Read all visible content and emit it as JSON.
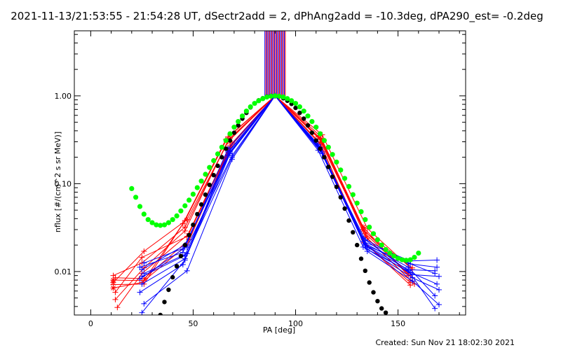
{
  "chart_data": {
    "type": "line",
    "title": "2021-11-13/21:53:55 - 21:54:28 UT, dSectr2add = 2, dPhAng2add = -10.3deg, dPA290_est= -0.2deg",
    "xlabel": "PA [deg]",
    "ylabel": "nflux [#/(cm^2 s sr MeV)]",
    "xlim": [
      -8,
      183
    ],
    "ylim": [
      0.0032,
      5.5
    ],
    "yscale": "log",
    "grid": false,
    "x_ticks": [
      {
        "value": 0,
        "label": "0"
      },
      {
        "value": 50,
        "label": "50"
      },
      {
        "value": 100,
        "label": "100"
      },
      {
        "value": 150,
        "label": "150"
      }
    ],
    "y_ticks": [
      {
        "value": 0.01,
        "label": "0.01"
      },
      {
        "value": 0.1,
        "label": "0.10"
      },
      {
        "value": 1,
        "label": "1.00"
      }
    ],
    "footer": "Created: Sun Nov 21 18:02:30 2021",
    "colors": {
      "red": "#ff0000",
      "blue": "#0000ff",
      "black": "#000000",
      "green": "#00ff00"
    },
    "series": [
      {
        "color": "red",
        "points": [
          [
            11,
            0.0075
          ],
          [
            26,
            0.017
          ],
          [
            47,
            0.039
          ],
          [
            68,
            0.33
          ],
          [
            90,
            1.0
          ],
          [
            112,
            0.35
          ],
          [
            133,
            0.032
          ],
          [
            155,
            0.009
          ]
        ]
      },
      {
        "color": "red",
        "points": [
          [
            11,
            0.009
          ],
          [
            25,
            0.0125
          ],
          [
            46,
            0.032
          ],
          [
            67,
            0.3
          ],
          [
            90,
            1.0
          ],
          [
            112,
            0.32
          ],
          [
            134,
            0.028
          ],
          [
            157,
            0.011
          ]
        ]
      },
      {
        "color": "red",
        "points": [
          [
            12,
            0.0085
          ],
          [
            26,
            0.0083
          ],
          [
            48,
            0.023
          ],
          [
            69,
            0.28
          ],
          [
            90,
            1.0
          ],
          [
            113,
            0.3
          ],
          [
            134,
            0.025
          ],
          [
            156,
            0.008
          ]
        ]
      },
      {
        "color": "red",
        "points": [
          [
            11,
            0.0065
          ],
          [
            25,
            0.0075
          ],
          [
            47,
            0.02
          ],
          [
            68,
            0.26
          ],
          [
            90,
            1.0
          ],
          [
            112,
            0.29
          ],
          [
            133,
            0.022
          ],
          [
            156,
            0.0075
          ]
        ]
      },
      {
        "color": "red",
        "points": [
          [
            12,
            0.0048
          ],
          [
            26,
            0.011
          ],
          [
            46,
            0.029
          ],
          [
            67,
            0.31
          ],
          [
            90,
            1.0
          ],
          [
            112,
            0.33
          ],
          [
            134,
            0.027
          ],
          [
            157,
            0.0085
          ]
        ]
      },
      {
        "color": "red",
        "points": [
          [
            13,
            0.0039
          ],
          [
            25,
            0.0095
          ],
          [
            48,
            0.027
          ],
          [
            69,
            0.29
          ],
          [
            90,
            1.0
          ],
          [
            113,
            0.31
          ],
          [
            135,
            0.024
          ],
          [
            158,
            0.0072
          ]
        ]
      },
      {
        "color": "red",
        "points": [
          [
            11,
            0.008
          ],
          [
            26,
            0.0079
          ],
          [
            45,
            0.035
          ],
          [
            66,
            0.32
          ],
          [
            90,
            1.0
          ],
          [
            111,
            0.34
          ],
          [
            133,
            0.03
          ],
          [
            155,
            0.0095
          ]
        ]
      },
      {
        "color": "red",
        "points": [
          [
            12,
            0.0058
          ],
          [
            25,
            0.0145
          ],
          [
            47,
            0.025
          ],
          [
            68,
            0.27
          ],
          [
            90,
            1.0
          ],
          [
            112,
            0.28
          ],
          [
            134,
            0.021
          ],
          [
            156,
            0.007
          ]
        ]
      },
      {
        "color": "red",
        "points": [
          [
            11,
            0.0071
          ],
          [
            26,
            0.0072
          ],
          [
            46,
            0.038
          ],
          [
            67,
            0.34
          ],
          [
            90,
            1.0
          ],
          [
            113,
            0.36
          ],
          [
            135,
            0.031
          ],
          [
            157,
            0.0105
          ]
        ]
      },
      {
        "color": "blue",
        "points": [
          [
            25,
            0.0105
          ],
          [
            46,
            0.02
          ],
          [
            68,
            0.22
          ],
          [
            90,
            1.0
          ],
          [
            112,
            0.25
          ],
          [
            134,
            0.02
          ],
          [
            155,
            0.0125
          ],
          [
            168,
            0.0095
          ]
        ]
      },
      {
        "color": "blue",
        "points": [
          [
            24,
            0.0082
          ],
          [
            45,
            0.018
          ],
          [
            67,
            0.21
          ],
          [
            90,
            1.0
          ],
          [
            111,
            0.24
          ],
          [
            133,
            0.019
          ],
          [
            156,
            0.0098
          ],
          [
            169,
            0.0072
          ]
        ]
      },
      {
        "color": "blue",
        "points": [
          [
            26,
            0.0095
          ],
          [
            47,
            0.016
          ],
          [
            69,
            0.2
          ],
          [
            90,
            1.0
          ],
          [
            113,
            0.23
          ],
          [
            135,
            0.018
          ],
          [
            157,
            0.0085
          ],
          [
            170,
            0.0062
          ]
        ]
      },
      {
        "color": "blue",
        "points": [
          [
            25,
            0.0072
          ],
          [
            46,
            0.014
          ],
          [
            68,
            0.24
          ],
          [
            90,
            1.0
          ],
          [
            112,
            0.26
          ],
          [
            134,
            0.021
          ],
          [
            155,
            0.0112
          ],
          [
            168,
            0.0053
          ]
        ]
      },
      {
        "color": "blue",
        "points": [
          [
            24,
            0.0058
          ],
          [
            45,
            0.012
          ],
          [
            67,
            0.23
          ],
          [
            90,
            1.0
          ],
          [
            111,
            0.27
          ],
          [
            133,
            0.022
          ],
          [
            156,
            0.0132
          ],
          [
            169,
            0.0135
          ]
        ]
      },
      {
        "color": "blue",
        "points": [
          [
            26,
            0.0043
          ],
          [
            47,
            0.0102
          ],
          [
            69,
            0.19
          ],
          [
            90,
            1.0
          ],
          [
            113,
            0.22
          ],
          [
            135,
            0.017
          ],
          [
            157,
            0.0078
          ],
          [
            170,
            0.0042
          ]
        ]
      },
      {
        "color": "blue",
        "points": [
          [
            25,
            0.0034
          ],
          [
            46,
            0.0135
          ],
          [
            68,
            0.22
          ],
          [
            90,
            1.0
          ],
          [
            112,
            0.24
          ],
          [
            134,
            0.023
          ],
          [
            155,
            0.0102
          ],
          [
            168,
            0.0038
          ]
        ]
      },
      {
        "color": "blue",
        "points": [
          [
            24,
            0.0112
          ],
          [
            45,
            0.0165
          ],
          [
            67,
            0.25
          ],
          [
            90,
            1.0
          ],
          [
            111,
            0.28
          ],
          [
            133,
            0.024
          ],
          [
            156,
            0.0122
          ],
          [
            169,
            0.0112
          ]
        ]
      },
      {
        "color": "blue",
        "points": [
          [
            26,
            0.0125
          ],
          [
            47,
            0.019
          ],
          [
            69,
            0.21
          ],
          [
            90,
            1.0
          ],
          [
            113,
            0.23
          ],
          [
            135,
            0.019
          ],
          [
            157,
            0.0092
          ],
          [
            170,
            0.0088
          ]
        ]
      },
      {
        "color": "blue",
        "points": [
          [
            25,
            0.0088
          ],
          [
            46,
            0.0152
          ],
          [
            68,
            0.23
          ],
          [
            90,
            1.0
          ],
          [
            112,
            0.25
          ],
          [
            134,
            0.02
          ],
          [
            155,
            0.0105
          ],
          [
            168,
            0.0102
          ]
        ]
      }
    ],
    "vertical_spike": {
      "x_range": [
        85,
        95
      ],
      "count": 22,
      "y_from": 1.0
    },
    "curves": [
      {
        "name": "black",
        "color": "black",
        "points": [
          [
            34,
            0.0032
          ],
          [
            36,
            0.0045
          ],
          [
            38,
            0.0062
          ],
          [
            40,
            0.0086
          ],
          [
            42,
            0.0115
          ],
          [
            44,
            0.015
          ],
          [
            46,
            0.02
          ],
          [
            48,
            0.026
          ],
          [
            50,
            0.034
          ],
          [
            52,
            0.045
          ],
          [
            54,
            0.058
          ],
          [
            56,
            0.075
          ],
          [
            58,
            0.097
          ],
          [
            60,
            0.125
          ],
          [
            62,
            0.16
          ],
          [
            64,
            0.2
          ],
          [
            66,
            0.25
          ],
          [
            68,
            0.31
          ],
          [
            70,
            0.38
          ],
          [
            72,
            0.46
          ],
          [
            74,
            0.55
          ],
          [
            76,
            0.64
          ],
          [
            78,
            0.74
          ],
          [
            80,
            0.82
          ],
          [
            82,
            0.89
          ],
          [
            84,
            0.94
          ],
          [
            86,
            0.98
          ],
          [
            88,
            1.0
          ],
          [
            90,
            1.0
          ],
          [
            92,
            0.98
          ],
          [
            94,
            0.94
          ],
          [
            96,
            0.88
          ],
          [
            98,
            0.81
          ],
          [
            100,
            0.73
          ],
          [
            102,
            0.64
          ],
          [
            104,
            0.55
          ],
          [
            106,
            0.46
          ],
          [
            108,
            0.38
          ],
          [
            110,
            0.31
          ],
          [
            112,
            0.25
          ],
          [
            114,
            0.2
          ],
          [
            116,
            0.155
          ],
          [
            118,
            0.12
          ],
          [
            120,
            0.092
          ],
          [
            122,
            0.07
          ],
          [
            124,
            0.052
          ],
          [
            126,
            0.038
          ],
          [
            128,
            0.028
          ],
          [
            130,
            0.02
          ],
          [
            132,
            0.014
          ],
          [
            134,
            0.0102
          ],
          [
            136,
            0.0075
          ],
          [
            138,
            0.0058
          ],
          [
            140,
            0.0046
          ],
          [
            142,
            0.0038
          ],
          [
            144,
            0.0034
          ]
        ]
      },
      {
        "name": "green",
        "color": "green",
        "points": [
          [
            20,
            0.088
          ],
          [
            22,
            0.07
          ],
          [
            24,
            0.055
          ],
          [
            26,
            0.045
          ],
          [
            28,
            0.039
          ],
          [
            30,
            0.036
          ],
          [
            32,
            0.034
          ],
          [
            34,
            0.0335
          ],
          [
            36,
            0.034
          ],
          [
            38,
            0.036
          ],
          [
            40,
            0.039
          ],
          [
            42,
            0.043
          ],
          [
            44,
            0.049
          ],
          [
            46,
            0.056
          ],
          [
            48,
            0.065
          ],
          [
            50,
            0.076
          ],
          [
            52,
            0.09
          ],
          [
            54,
            0.107
          ],
          [
            56,
            0.128
          ],
          [
            58,
            0.153
          ],
          [
            60,
            0.183
          ],
          [
            62,
            0.218
          ],
          [
            64,
            0.26
          ],
          [
            66,
            0.31
          ],
          [
            68,
            0.37
          ],
          [
            70,
            0.44
          ],
          [
            72,
            0.51
          ],
          [
            74,
            0.59
          ],
          [
            76,
            0.67
          ],
          [
            78,
            0.75
          ],
          [
            80,
            0.82
          ],
          [
            82,
            0.88
          ],
          [
            84,
            0.93
          ],
          [
            86,
            0.97
          ],
          [
            88,
            0.99
          ],
          [
            90,
            1.0
          ],
          [
            92,
            0.99
          ],
          [
            94,
            0.97
          ],
          [
            96,
            0.93
          ],
          [
            98,
            0.88
          ],
          [
            100,
            0.82
          ],
          [
            102,
            0.75
          ],
          [
            104,
            0.67
          ],
          [
            106,
            0.59
          ],
          [
            108,
            0.51
          ],
          [
            110,
            0.44
          ],
          [
            112,
            0.37
          ],
          [
            114,
            0.31
          ],
          [
            116,
            0.26
          ],
          [
            118,
            0.215
          ],
          [
            120,
            0.176
          ],
          [
            122,
            0.143
          ],
          [
            124,
            0.115
          ],
          [
            126,
            0.093
          ],
          [
            128,
            0.075
          ],
          [
            130,
            0.06
          ],
          [
            132,
            0.048
          ],
          [
            134,
            0.039
          ],
          [
            136,
            0.032
          ],
          [
            138,
            0.027
          ],
          [
            140,
            0.023
          ],
          [
            142,
            0.02
          ],
          [
            144,
            0.0178
          ],
          [
            146,
            0.0162
          ],
          [
            148,
            0.015
          ],
          [
            150,
            0.0141
          ],
          [
            152,
            0.0136
          ],
          [
            154,
            0.0134
          ],
          [
            156,
            0.0136
          ],
          [
            158,
            0.0145
          ],
          [
            160,
            0.0162
          ]
        ]
      }
    ]
  }
}
